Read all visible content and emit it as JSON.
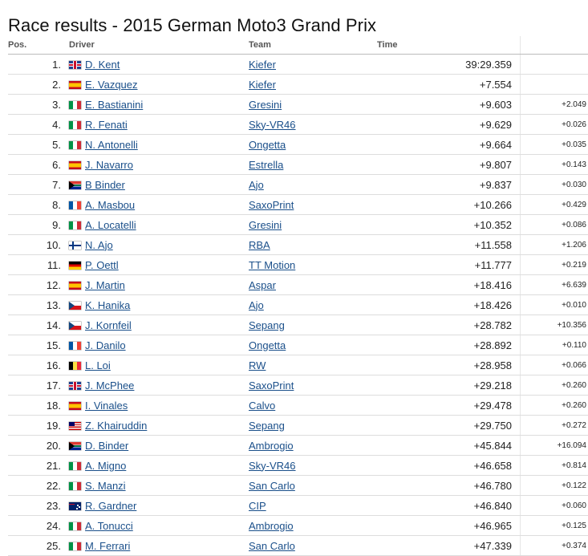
{
  "page": {
    "title": "Race results - 2015 German Moto3 Grand Prix"
  },
  "columns": {
    "pos": "Pos.",
    "driver": "Driver",
    "team": "Team",
    "time": "Time"
  },
  "rows": [
    {
      "pos": "1.",
      "flag": "gb",
      "driver": "D. Kent",
      "team": "Kiefer",
      "time": "39:29.359",
      "gap": ""
    },
    {
      "pos": "2.",
      "flag": "es",
      "driver": "E. Vazquez",
      "team": "Kiefer",
      "time": "+7.554",
      "gap": ""
    },
    {
      "pos": "3.",
      "flag": "it",
      "driver": "E. Bastianini",
      "team": "Gresini",
      "time": "+9.603",
      "gap": "+2.049"
    },
    {
      "pos": "4.",
      "flag": "it",
      "driver": "R. Fenati",
      "team": "Sky-VR46",
      "time": "+9.629",
      "gap": "+0.026"
    },
    {
      "pos": "5.",
      "flag": "it",
      "driver": "N. Antonelli",
      "team": "Ongetta",
      "time": "+9.664",
      "gap": "+0.035"
    },
    {
      "pos": "6.",
      "flag": "es",
      "driver": "J. Navarro",
      "team": "Estrella",
      "time": "+9.807",
      "gap": "+0.143"
    },
    {
      "pos": "7.",
      "flag": "za",
      "driver": "B Binder",
      "team": "Ajo",
      "time": "+9.837",
      "gap": "+0.030"
    },
    {
      "pos": "8.",
      "flag": "fr",
      "driver": "A. Masbou",
      "team": "SaxoPrint",
      "time": "+10.266",
      "gap": "+0.429"
    },
    {
      "pos": "9.",
      "flag": "it",
      "driver": "A. Locatelli",
      "team": "Gresini",
      "time": "+10.352",
      "gap": "+0.086"
    },
    {
      "pos": "10.",
      "flag": "fi",
      "driver": "N. Ajo",
      "team": "RBA",
      "time": "+11.558",
      "gap": "+1.206"
    },
    {
      "pos": "11.",
      "flag": "de",
      "driver": "P. Oettl",
      "team": "TT Motion",
      "time": "+11.777",
      "gap": "+0.219"
    },
    {
      "pos": "12.",
      "flag": "es",
      "driver": "J. Martin",
      "team": "Aspar",
      "time": "+18.416",
      "gap": "+6.639"
    },
    {
      "pos": "13.",
      "flag": "cz",
      "driver": "K. Hanika",
      "team": "Ajo",
      "time": "+18.426",
      "gap": "+0.010"
    },
    {
      "pos": "14.",
      "flag": "cz",
      "driver": "J. Kornfeil",
      "team": "Sepang",
      "time": "+28.782",
      "gap": "+10.356"
    },
    {
      "pos": "15.",
      "flag": "fr",
      "driver": "J. Danilo",
      "team": "Ongetta",
      "time": "+28.892",
      "gap": "+0.110"
    },
    {
      "pos": "16.",
      "flag": "be",
      "driver": "L. Loi",
      "team": "RW",
      "time": "+28.958",
      "gap": "+0.066"
    },
    {
      "pos": "17.",
      "flag": "gb",
      "driver": "J. McPhee",
      "team": "SaxoPrint",
      "time": "+29.218",
      "gap": "+0.260"
    },
    {
      "pos": "18.",
      "flag": "es",
      "driver": "I. Vinales",
      "team": "Calvo",
      "time": "+29.478",
      "gap": "+0.260"
    },
    {
      "pos": "19.",
      "flag": "my",
      "driver": "Z. Khairuddin",
      "team": "Sepang",
      "time": "+29.750",
      "gap": "+0.272"
    },
    {
      "pos": "20.",
      "flag": "za",
      "driver": "D. Binder",
      "team": "Ambrogio",
      "time": "+45.844",
      "gap": "+16.094"
    },
    {
      "pos": "21.",
      "flag": "it",
      "driver": "A. Migno",
      "team": "Sky-VR46",
      "time": "+46.658",
      "gap": "+0.814"
    },
    {
      "pos": "22.",
      "flag": "it",
      "driver": "S. Manzi",
      "team": "San Carlo",
      "time": "+46.780",
      "gap": "+0.122"
    },
    {
      "pos": "23.",
      "flag": "au",
      "driver": "R. Gardner",
      "team": "CIP",
      "time": "+46.840",
      "gap": "+0.060"
    },
    {
      "pos": "24.",
      "flag": "it",
      "driver": "A. Tonucci",
      "team": "Ambrogio",
      "time": "+46.965",
      "gap": "+0.125"
    },
    {
      "pos": "25.",
      "flag": "it",
      "driver": "M. Ferrari",
      "team": "San Carlo",
      "time": "+47.339",
      "gap": "+0.374"
    }
  ]
}
